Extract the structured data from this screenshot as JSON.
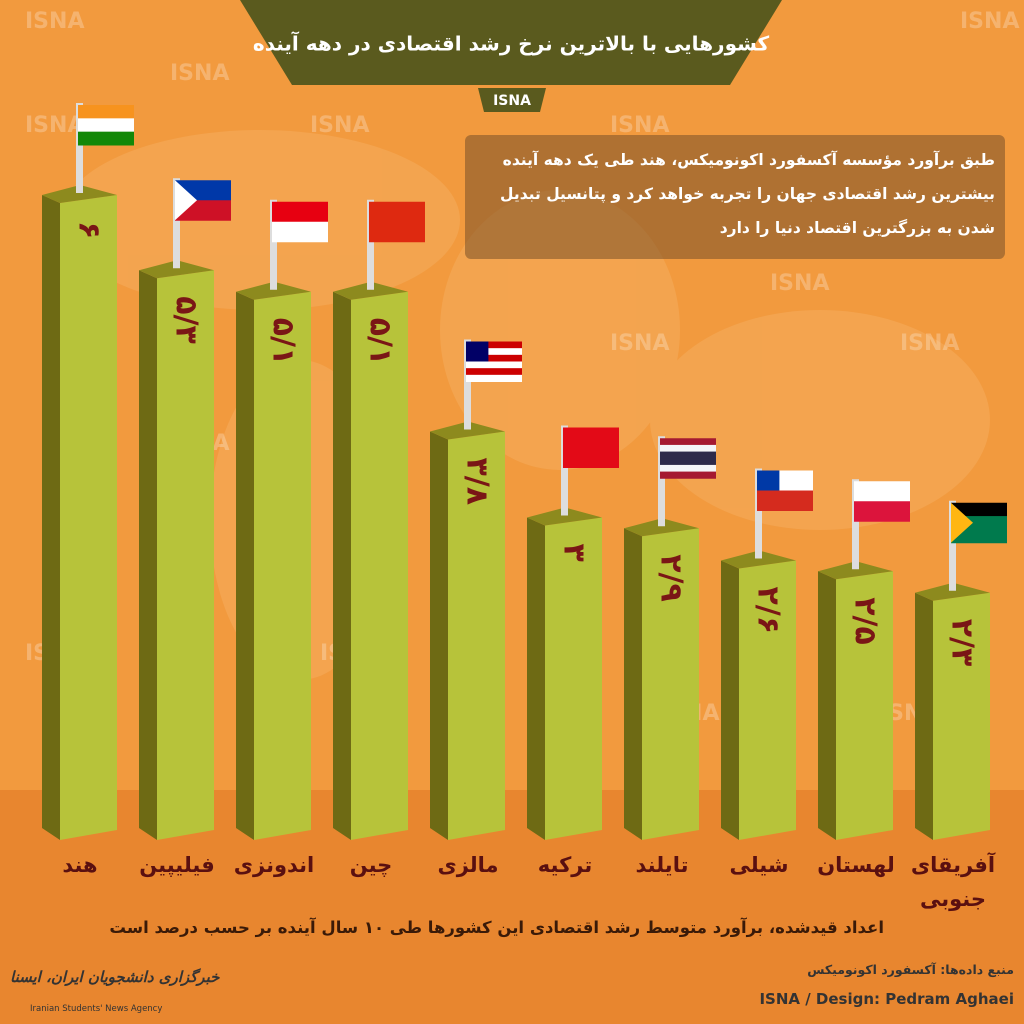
{
  "chart_data": {
    "type": "bar",
    "title": "کشورهایی با بالاترین نرخ رشد اقتصادی در دهه آینده",
    "badge": "ISNA",
    "watermark": "ISNA",
    "description": "طبق برآورد مؤسسه آکسفورد اکونومیکس، هند طی یک دهه آینده بیشترین رشد اقتصادی جهان را تجربه خواهد کرد و پتانسیل تبدیل شدن به بزرگترین اقتصاد دنیا را دارد",
    "categories": [
      "هند",
      "فیلیپین",
      "اندونزی",
      "چین",
      "مالزی",
      "ترکیه",
      "تایلند",
      "شیلی",
      "لهستان",
      "آفریقای جنوبی"
    ],
    "values": [
      6,
      5.3,
      5.1,
      5.1,
      3.8,
      3,
      2.9,
      2.6,
      2.5,
      2.3
    ],
    "value_labels": [
      "۶",
      "۵/۳",
      "۵/۱",
      "۵/۱",
      "۳/۸",
      "۳",
      "۲/۹",
      "۲/۶",
      "۲/۵",
      "۲/۳"
    ],
    "color": "#b7c33a",
    "note": "اعداد قیدشده، برآورد متوسط رشد اقتصادی این کشورها طی ۱۰ سال آینده بر حسب درصد است",
    "source": "منبع داده‌ها: آکسفورد اکونومیکس",
    "credit": "ISNA / Design: Pedram Aghaei",
    "logo_fa": "خبرگزاری دانشجویان ایران، ایسنا",
    "logo_en": "Iranian Students' News Agency"
  }
}
